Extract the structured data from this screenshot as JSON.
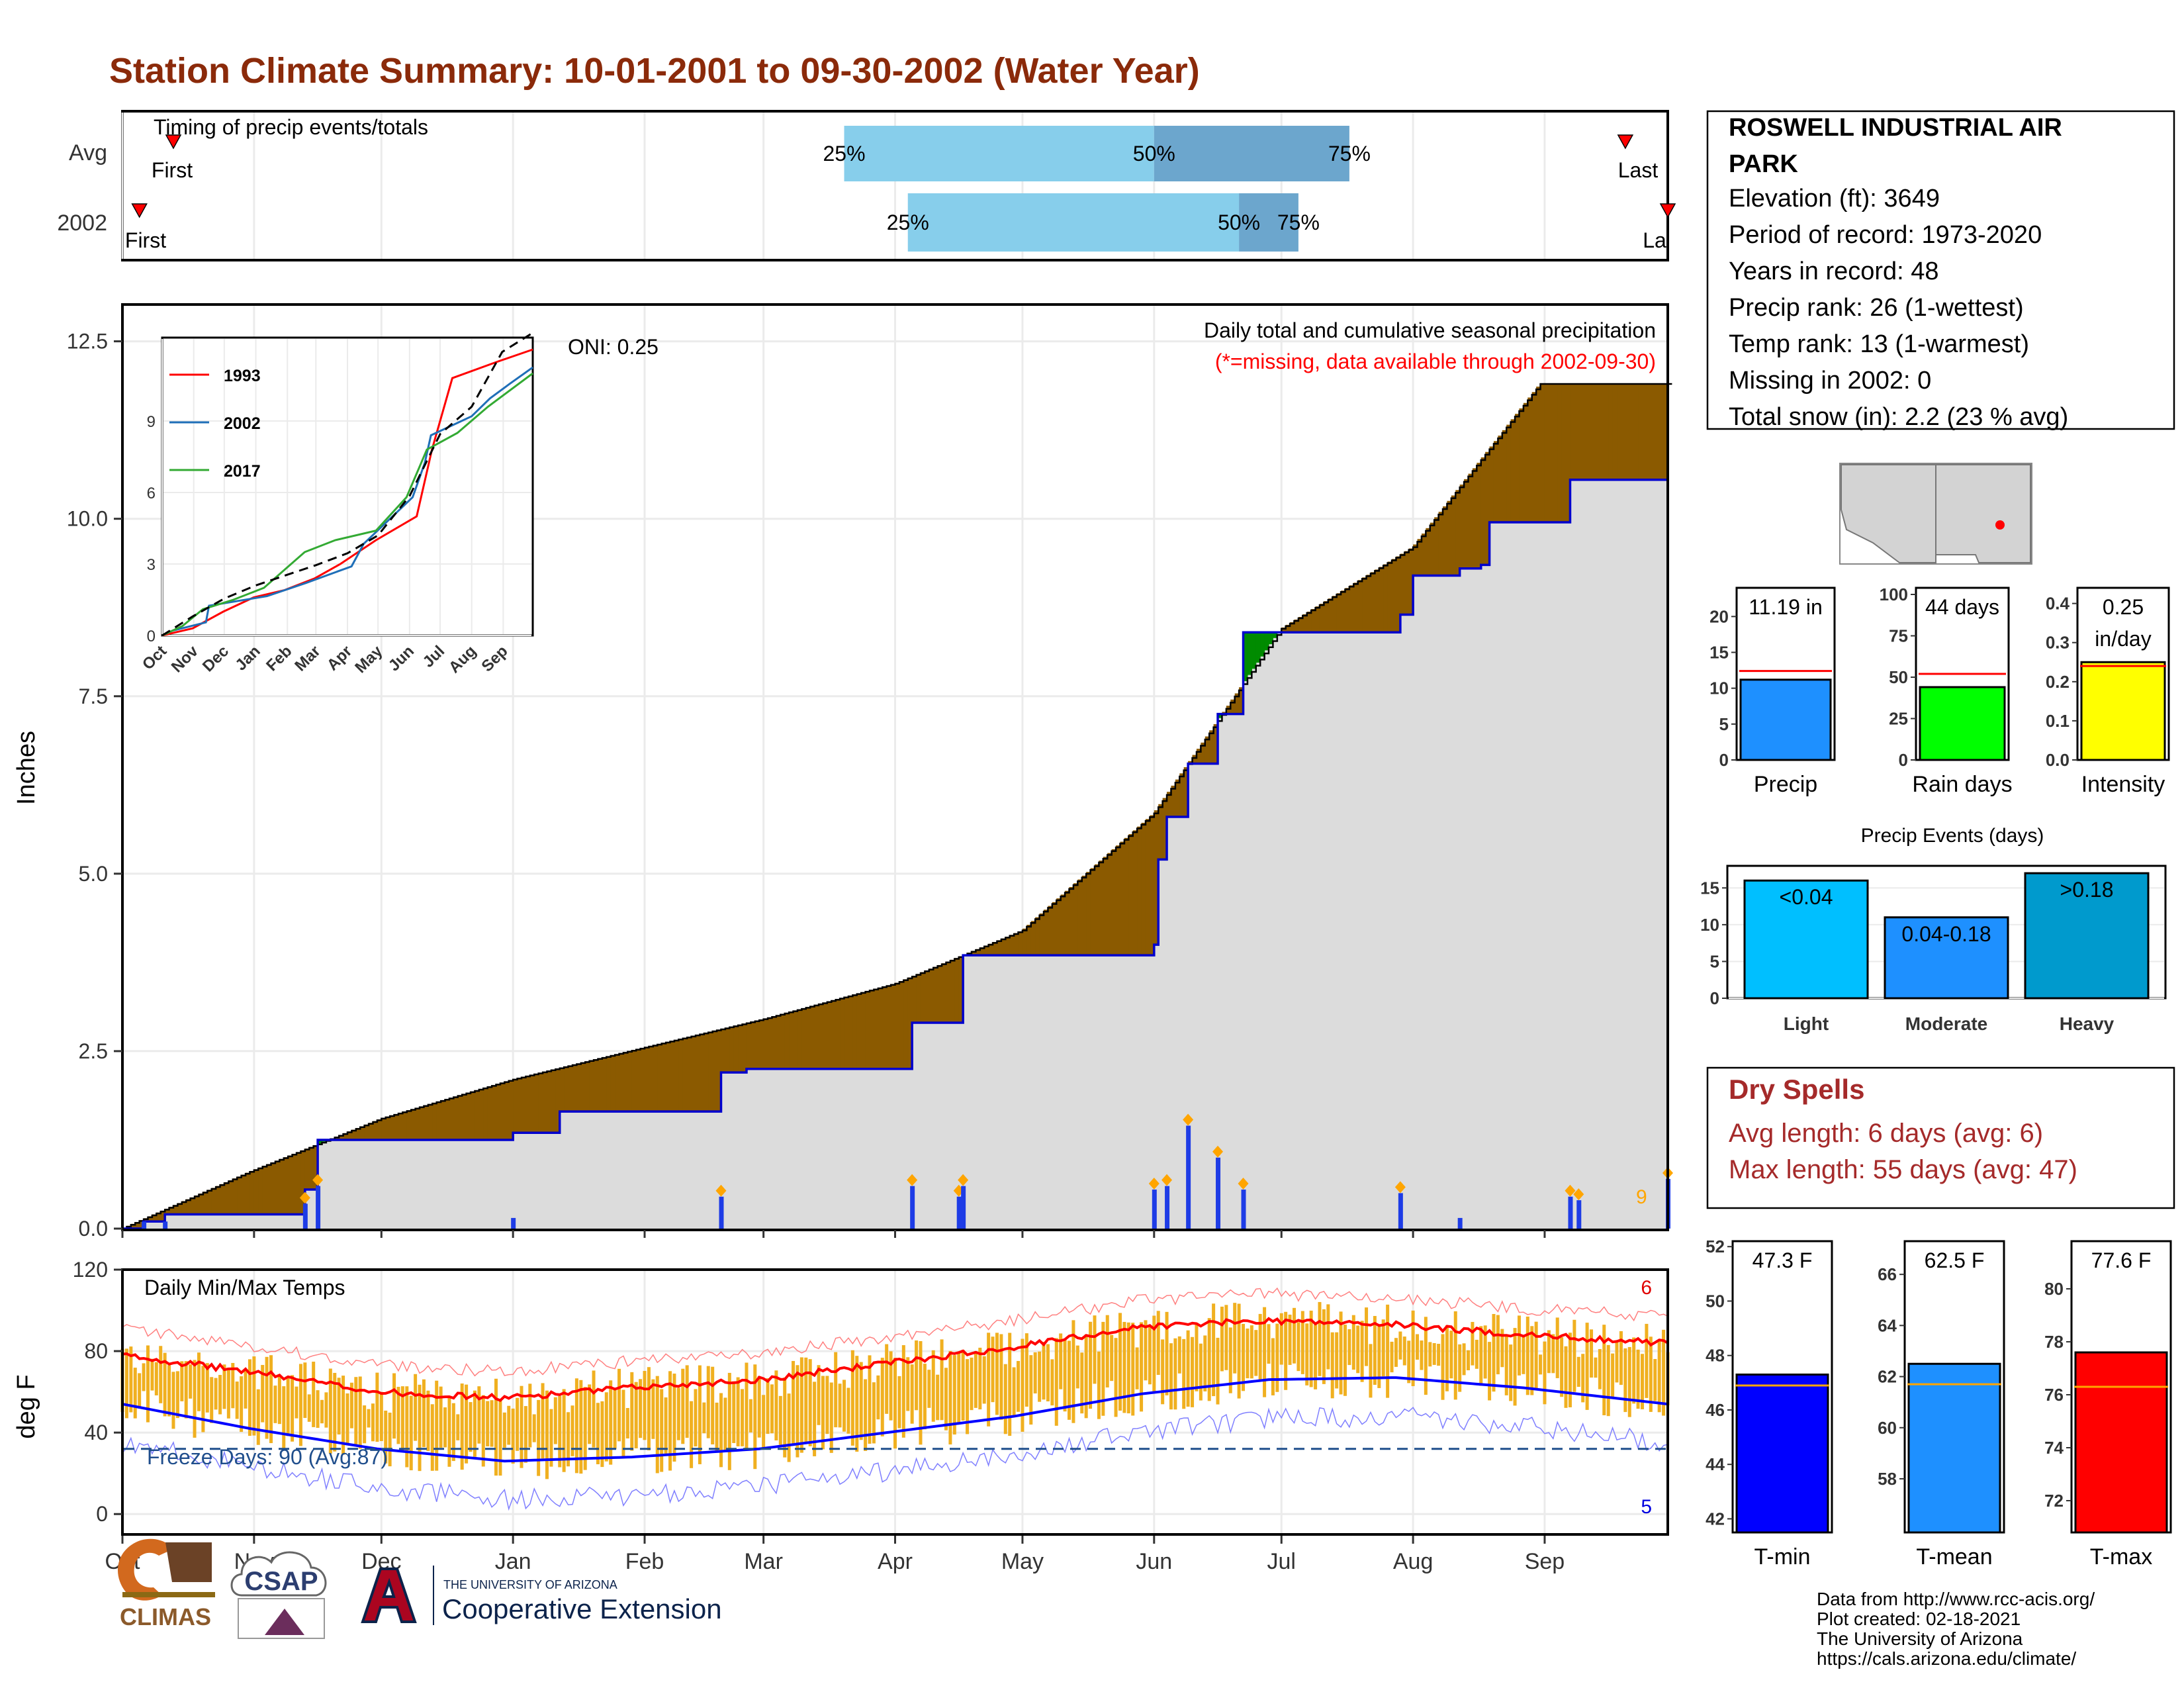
{
  "page": {
    "title": "Station Climate Summary: 10-01-2001 to 09-30-2002 (Water Year)",
    "title_color": "#8B2A0A"
  },
  "timing": {
    "panel_label": "Timing of precip events/totals",
    "rows": [
      {
        "label": "Avg",
        "first_label": "First",
        "last_label": "Last",
        "p25_label": "25%",
        "p50_label": "50%",
        "p75_label": "75%",
        "p25": "2002-03-20",
        "p50": "2002-06-01",
        "p75": "2002-07-17",
        "first": "2001-10-13",
        "last": "2002-09-20"
      },
      {
        "label": "2002",
        "first_label": "First",
        "last_label": "La",
        "p25_label": "25%",
        "p50_label": "50%",
        "p75_label": "75%",
        "p25": "2002-04-04",
        "p50": "2002-06-21",
        "p75": "2002-07-05",
        "first": "2001-10-05",
        "last": "2002-09-30"
      }
    ],
    "colors": {
      "light": "#87CEEB",
      "dark": "#6CA6CD",
      "marker": "#FF0000"
    }
  },
  "precip_panel": {
    "ylabel": "Inches",
    "note1": "Daily total and cumulative seasonal precipitation",
    "note2": "(*=missing, data available through 2002-09-30)",
    "oni": "ONI: 0.25",
    "count_label": "9"
  },
  "inset": {
    "legend": [
      "1993",
      "2002",
      "2017"
    ]
  },
  "temp_panel": {
    "ylabel": "deg F",
    "title": "Daily Min/Max Temps",
    "freeze": "Freeze Days: 90 (Avg:87)",
    "max_count": "6",
    "min_count": "5"
  },
  "info_box": {
    "station_line1": "ROSWELL INDUSTRIAL AIR",
    "station_line2": "PARK",
    "elevation": "Elevation (ft): 3649",
    "period": "Period of record: 1973-2020",
    "years": "Years in record: 48",
    "precip_rank": "Precip rank: 26 (1-wettest)",
    "temp_rank": "Temp rank: 13 (1-warmest)",
    "missing": "Missing in 2002: 0",
    "snow": "Total snow (in): 2.2 (23 % avg)"
  },
  "dry_spells": {
    "title": "Dry Spells",
    "avg": "Avg length: 6 days (avg: 6)",
    "max": "Max length: 55 days (avg: 47)",
    "color": "#A52A2A"
  },
  "footer": {
    "line1": "Data from http://www.rcc-acis.org/",
    "line2": "Plot created: 02-18-2021",
    "line3": "The University of Arizona",
    "line4": "https://cals.arizona.edu/climate/",
    "climas": "CLIMAS",
    "csap": "CSAP",
    "ua_small": "THE UNIVERSITY OF ARIZONA",
    "ua_big": "Cooperative Extension"
  },
  "chart_data": [
    {
      "id": "cumulative_precip",
      "type": "area",
      "xlabel": "",
      "ylabel": "Inches",
      "ylim": [
        0,
        13
      ],
      "yticks": [
        0.0,
        2.5,
        5.0,
        7.5,
        10.0,
        12.5
      ],
      "month_labels": [
        "Oct",
        "Nov",
        "Dec",
        "Jan",
        "Feb",
        "Mar",
        "Apr",
        "May",
        "Jun",
        "Jul",
        "Aug",
        "Sep"
      ],
      "avg_cumulative": [
        [
          0,
          0
        ],
        [
          30,
          0.8
        ],
        [
          61,
          1.55
        ],
        [
          92,
          2.1
        ],
        [
          123,
          2.55
        ],
        [
          151,
          2.95
        ],
        [
          182,
          3.45
        ],
        [
          212,
          4.2
        ],
        [
          243,
          5.85
        ],
        [
          273,
          8.45
        ],
        [
          304,
          9.6
        ],
        [
          334,
          11.9
        ]
      ],
      "cumulative_2002_steps": [
        [
          0,
          0
        ],
        [
          5,
          0.1
        ],
        [
          10,
          0.2
        ],
        [
          40,
          0.2
        ],
        [
          43,
          0.55
        ],
        [
          46,
          1.25
        ],
        [
          92,
          1.35
        ],
        [
          103,
          1.65
        ],
        [
          135,
          1.65
        ],
        [
          141,
          2.2
        ],
        [
          147,
          2.25
        ],
        [
          182,
          2.25
        ],
        [
          186,
          2.9
        ],
        [
          197,
          2.9
        ],
        [
          198,
          3.85
        ],
        [
          241,
          3.85
        ],
        [
          243,
          4.0
        ],
        [
          244,
          5.2
        ],
        [
          246,
          5.8
        ],
        [
          251,
          6.55
        ],
        [
          258,
          7.25
        ],
        [
          264,
          8.4
        ],
        [
          301,
          8.6
        ],
        [
          301,
          8.65
        ],
        [
          304,
          9.2
        ],
        [
          315,
          9.3
        ],
        [
          320,
          9.35
        ],
        [
          322,
          9.95
        ],
        [
          340,
          9.95
        ],
        [
          341,
          10.55
        ],
        [
          364,
          10.55
        ],
        [
          364,
          11.25
        ]
      ],
      "daily_2002": [
        [
          5,
          0.1
        ],
        [
          10,
          0.1
        ],
        [
          43,
          0.35
        ],
        [
          46,
          0.6
        ],
        [
          92,
          0.15
        ],
        [
          141,
          0.45
        ],
        [
          186,
          0.6
        ],
        [
          197,
          0.45
        ],
        [
          198,
          0.6
        ],
        [
          243,
          0.55
        ],
        [
          246,
          0.6
        ],
        [
          251,
          1.45
        ],
        [
          258,
          1.0
        ],
        [
          264,
          0.55
        ],
        [
          301,
          0.5
        ],
        [
          315,
          0.15
        ],
        [
          341,
          0.45
        ],
        [
          343,
          0.4
        ],
        [
          364,
          0.7
        ]
      ],
      "colors": {
        "below": "#8B5A00",
        "above": "#008B00",
        "fill": "#DCDCDC",
        "line2002": "#0000CD",
        "bars": "#1E3CE6",
        "extremes": "#FFA500"
      }
    },
    {
      "id": "inset_cumulative",
      "type": "line",
      "xlabel": "",
      "ylabel": "",
      "ylim": [
        0,
        12.5
      ],
      "yticks": [
        0,
        3,
        6,
        9
      ],
      "month_labels": [
        "Oct",
        "Nov",
        "Dec",
        "Jan",
        "Feb",
        "Mar",
        "Apr",
        "May",
        "Jun",
        "Jul",
        "Aug",
        "Sep"
      ],
      "series": [
        {
          "name": "1993",
          "color": "#FF0000",
          "points": [
            [
              0,
              0
            ],
            [
              30,
              0.3
            ],
            [
              60,
              1.0
            ],
            [
              90,
              1.6
            ],
            [
              120,
              1.9
            ],
            [
              150,
              2.4
            ],
            [
              175,
              3.0
            ],
            [
              210,
              4.0
            ],
            [
              250,
              5.0
            ],
            [
              265,
              7.8
            ],
            [
              285,
              10.8
            ],
            [
              330,
              11.5
            ],
            [
              364,
              12.0
            ]
          ]
        },
        {
          "name": "2002",
          "color": "#1F6FB8",
          "points": [
            [
              0,
              0
            ],
            [
              10,
              0.2
            ],
            [
              43,
              0.55
            ],
            [
              46,
              1.25
            ],
            [
              103,
              1.65
            ],
            [
              141,
              2.2
            ],
            [
              186,
              2.9
            ],
            [
              198,
              3.85
            ],
            [
              246,
              5.8
            ],
            [
              258,
              7.25
            ],
            [
              264,
              8.4
            ],
            [
              304,
              9.2
            ],
            [
              322,
              9.95
            ],
            [
              341,
              10.55
            ],
            [
              364,
              11.25
            ]
          ]
        },
        {
          "name": "2017",
          "color": "#33AA33",
          "points": [
            [
              0,
              0
            ],
            [
              20,
              0.4
            ],
            [
              40,
              1.1
            ],
            [
              70,
              1.5
            ],
            [
              100,
              2.0
            ],
            [
              140,
              3.5
            ],
            [
              170,
              4.0
            ],
            [
              210,
              4.4
            ],
            [
              240,
              5.8
            ],
            [
              260,
              7.8
            ],
            [
              290,
              8.5
            ],
            [
              320,
              9.6
            ],
            [
              364,
              11.0
            ]
          ]
        },
        {
          "name": "avg",
          "color": "#000000",
          "dash": true,
          "points": [
            [
              0,
              0
            ],
            [
              30,
              0.8
            ],
            [
              61,
              1.55
            ],
            [
              92,
              2.1
            ],
            [
              123,
              2.55
            ],
            [
              151,
              2.95
            ],
            [
              182,
              3.45
            ],
            [
              212,
              4.2
            ],
            [
              243,
              5.85
            ],
            [
              273,
              8.45
            ],
            [
              304,
              9.6
            ],
            [
              334,
              11.9
            ],
            [
              364,
              12.7
            ]
          ]
        }
      ]
    },
    {
      "id": "daily_temps",
      "type": "line",
      "xlabel": "",
      "ylabel": "deg F",
      "ylim": [
        -10,
        120
      ],
      "yticks": [
        0,
        40,
        80,
        120
      ],
      "month_labels": [
        "Oct",
        "Nov",
        "Dec",
        "Jan",
        "Feb",
        "Mar",
        "Apr",
        "May",
        "Jun",
        "Jul",
        "Aug",
        "Sep"
      ],
      "freeze_line": 32,
      "avg_max_knots": [
        [
          0,
          78
        ],
        [
          30,
          70
        ],
        [
          60,
          60
        ],
        [
          90,
          57
        ],
        [
          120,
          62
        ],
        [
          150,
          66
        ],
        [
          180,
          74
        ],
        [
          210,
          82
        ],
        [
          240,
          92
        ],
        [
          270,
          95
        ],
        [
          300,
          93
        ],
        [
          330,
          88
        ],
        [
          364,
          84
        ]
      ],
      "avg_min_knots": [
        [
          0,
          54
        ],
        [
          30,
          42
        ],
        [
          60,
          32
        ],
        [
          90,
          26
        ],
        [
          120,
          28
        ],
        [
          150,
          32
        ],
        [
          180,
          40
        ],
        [
          210,
          48
        ],
        [
          240,
          59
        ],
        [
          270,
          66
        ],
        [
          300,
          67
        ],
        [
          330,
          62
        ],
        [
          364,
          54
        ]
      ],
      "colors": {
        "bars": "#F0B020",
        "avg_max": "#FF0000",
        "avg_min": "#0000FF",
        "rec_max": "#FF8080",
        "rec_min": "#8080FF",
        "freeze": "#1F4E8C"
      }
    },
    {
      "id": "precip_bars",
      "type": "bar",
      "panels": [
        {
          "label": "Precip",
          "value": 11.19,
          "value_label": "11.19 in",
          "avg": 12.4,
          "ylim": [
            0,
            24
          ],
          "yticks": [
            0,
            5,
            10,
            15,
            20
          ],
          "color": "#1E90FF"
        },
        {
          "label": "Rain days",
          "value": 44,
          "value_label": "44 days",
          "avg": 52,
          "ylim": [
            0,
            104
          ],
          "yticks": [
            0,
            25,
            50,
            75,
            100
          ],
          "color": "#00FF00"
        },
        {
          "label": "Intensity",
          "value": 0.25,
          "value_label": "0.25",
          "value_label2": "in/day",
          "avg": 0.24,
          "ylim": [
            0,
            0.44
          ],
          "yticks": [
            0.0,
            0.1,
            0.2,
            0.3,
            0.4
          ],
          "color": "#FFFF00"
        }
      ]
    },
    {
      "id": "precip_events",
      "type": "bar",
      "title": "Precip Events (days)",
      "categories": [
        "Light",
        "Moderate",
        "Heavy"
      ],
      "values": [
        16,
        11,
        17
      ],
      "labels": [
        "<0.04",
        "0.04-0.18",
        ">0.18"
      ],
      "colors": [
        "#00BFFF",
        "#1E90FF",
        "#009ACD"
      ],
      "ylim": [
        0,
        18
      ],
      "yticks": [
        0,
        5,
        10,
        15
      ]
    },
    {
      "id": "temp_bars",
      "type": "bar",
      "panels": [
        {
          "label": "T-min",
          "value": 47.3,
          "value_label": "47.3 F",
          "avg": 46.9,
          "ylim": [
            41.5,
            52.2
          ],
          "yticks": [
            42,
            44,
            46,
            48,
            50,
            52
          ],
          "color": "#0000FF"
        },
        {
          "label": "T-mean",
          "value": 62.5,
          "value_label": "62.5 F",
          "avg": 61.7,
          "ylim": [
            55.9,
            67.3
          ],
          "yticks": [
            58,
            60,
            62,
            64,
            66
          ],
          "color": "#1E90FF"
        },
        {
          "label": "T-max",
          "value": 77.6,
          "value_label": "77.6 F",
          "avg": 76.3,
          "ylim": [
            70.8,
            81.8
          ],
          "yticks": [
            72,
            74,
            76,
            78,
            80
          ],
          "color": "#FF0000"
        }
      ]
    }
  ]
}
